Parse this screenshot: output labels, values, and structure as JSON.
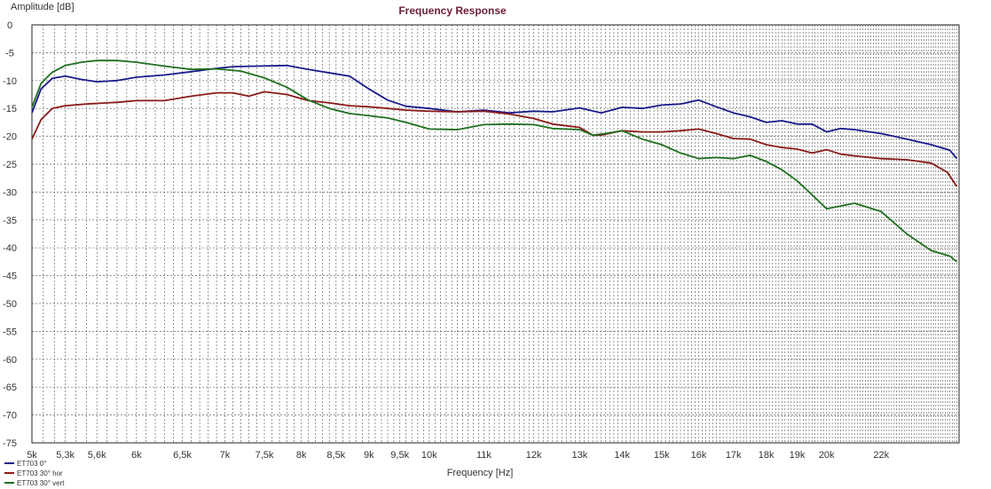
{
  "chart_data": {
    "type": "line",
    "title": "Frequency Response",
    "xlabel": "Frequency [Hz]",
    "ylabel": "Amplitude [dB]",
    "x_scale": "log",
    "xlim": [
      5000,
      25200
    ],
    "ylim": [
      -75,
      0
    ],
    "grid": true,
    "legend_position": "bottom-left",
    "x_tick_labels": [
      {
        "value": 5000,
        "label": "5k"
      },
      {
        "value": 5300,
        "label": "5,3k"
      },
      {
        "value": 5600,
        "label": "5,6k"
      },
      {
        "value": 6000,
        "label": "6k"
      },
      {
        "value": 6500,
        "label": "6,5k"
      },
      {
        "value": 7000,
        "label": "7k"
      },
      {
        "value": 7500,
        "label": "7,5k"
      },
      {
        "value": 8000,
        "label": "8k"
      },
      {
        "value": 8500,
        "label": "8,5k"
      },
      {
        "value": 9000,
        "label": "9k"
      },
      {
        "value": 9500,
        "label": "9,5k"
      },
      {
        "value": 10000,
        "label": "10k"
      },
      {
        "value": 11000,
        "label": "11k"
      },
      {
        "value": 12000,
        "label": "12k"
      },
      {
        "value": 13000,
        "label": "13k"
      },
      {
        "value": 14000,
        "label": "14k"
      },
      {
        "value": 15000,
        "label": "15k"
      },
      {
        "value": 16000,
        "label": "16k"
      },
      {
        "value": 17000,
        "label": "17k"
      },
      {
        "value": 18000,
        "label": "18k"
      },
      {
        "value": 19000,
        "label": "19k"
      },
      {
        "value": 20000,
        "label": "20k"
      },
      {
        "value": 22000,
        "label": "22k"
      }
    ],
    "y_ticks": [
      0,
      -5,
      -10,
      -15,
      -20,
      -25,
      -30,
      -35,
      -40,
      -45,
      -50,
      -55,
      -60,
      -65,
      -70,
      -75
    ],
    "series": [
      {
        "name": "ET703 0°",
        "color": "#1a1a8c",
        "points": [
          [
            5000,
            -15.8
          ],
          [
            5080,
            -11.5
          ],
          [
            5180,
            -9.6
          ],
          [
            5300,
            -9.2
          ],
          [
            5450,
            -9.8
          ],
          [
            5600,
            -10.2
          ],
          [
            5800,
            -10.0
          ],
          [
            6000,
            -9.4
          ],
          [
            6300,
            -9.0
          ],
          [
            6600,
            -8.4
          ],
          [
            6900,
            -7.8
          ],
          [
            7100,
            -7.5
          ],
          [
            7400,
            -7.4
          ],
          [
            7800,
            -7.3
          ],
          [
            8100,
            -8.0
          ],
          [
            8500,
            -8.8
          ],
          [
            8700,
            -9.2
          ],
          [
            9000,
            -11.5
          ],
          [
            9300,
            -13.5
          ],
          [
            9600,
            -14.6
          ],
          [
            10000,
            -15.0
          ],
          [
            10500,
            -15.6
          ],
          [
            11000,
            -15.3
          ],
          [
            11500,
            -15.8
          ],
          [
            12000,
            -15.5
          ],
          [
            12400,
            -15.6
          ],
          [
            13000,
            -14.9
          ],
          [
            13500,
            -15.8
          ],
          [
            14000,
            -14.8
          ],
          [
            14500,
            -15.0
          ],
          [
            15000,
            -14.4
          ],
          [
            15500,
            -14.2
          ],
          [
            16000,
            -13.5
          ],
          [
            16500,
            -14.7
          ],
          [
            17000,
            -15.8
          ],
          [
            17500,
            -16.5
          ],
          [
            18000,
            -17.5
          ],
          [
            18500,
            -17.2
          ],
          [
            19000,
            -17.8
          ],
          [
            19500,
            -17.8
          ],
          [
            20000,
            -19.2
          ],
          [
            20500,
            -18.6
          ],
          [
            21000,
            -18.8
          ],
          [
            22000,
            -19.5
          ],
          [
            23000,
            -20.5
          ],
          [
            24000,
            -21.5
          ],
          [
            24800,
            -22.5
          ],
          [
            25100,
            -24.0
          ]
        ]
      },
      {
        "name": "ET703 30° hor",
        "color": "#8b1a1a",
        "points": [
          [
            5000,
            -20.5
          ],
          [
            5080,
            -17.0
          ],
          [
            5180,
            -15.0
          ],
          [
            5300,
            -14.5
          ],
          [
            5500,
            -14.2
          ],
          [
            5800,
            -13.9
          ],
          [
            6000,
            -13.6
          ],
          [
            6300,
            -13.6
          ],
          [
            6600,
            -12.8
          ],
          [
            6900,
            -12.2
          ],
          [
            7100,
            -12.2
          ],
          [
            7300,
            -12.8
          ],
          [
            7500,
            -12.0
          ],
          [
            7800,
            -12.5
          ],
          [
            8100,
            -13.6
          ],
          [
            8400,
            -14.0
          ],
          [
            8700,
            -14.5
          ],
          [
            9000,
            -14.7
          ],
          [
            9300,
            -15.0
          ],
          [
            9600,
            -15.3
          ],
          [
            10000,
            -15.5
          ],
          [
            10500,
            -15.6
          ],
          [
            11000,
            -15.5
          ],
          [
            11500,
            -16.0
          ],
          [
            12000,
            -16.8
          ],
          [
            12400,
            -17.8
          ],
          [
            13000,
            -18.4
          ],
          [
            13300,
            -19.8
          ],
          [
            13500,
            -19.8
          ],
          [
            14000,
            -19.0
          ],
          [
            14500,
            -19.2
          ],
          [
            15000,
            -19.2
          ],
          [
            15500,
            -19.0
          ],
          [
            16000,
            -18.7
          ],
          [
            16500,
            -19.5
          ],
          [
            17000,
            -20.4
          ],
          [
            17500,
            -20.5
          ],
          [
            18000,
            -21.5
          ],
          [
            18500,
            -22.0
          ],
          [
            19000,
            -22.3
          ],
          [
            19500,
            -23.0
          ],
          [
            20000,
            -22.4
          ],
          [
            20500,
            -23.2
          ],
          [
            21000,
            -23.5
          ],
          [
            22000,
            -24.0
          ],
          [
            23000,
            -24.2
          ],
          [
            24000,
            -24.8
          ],
          [
            24700,
            -26.5
          ],
          [
            25100,
            -29.0
          ]
        ]
      },
      {
        "name": "ET703 30° vert",
        "color": "#1f6f1f",
        "points": [
          [
            5000,
            -14.8
          ],
          [
            5080,
            -10.5
          ],
          [
            5180,
            -8.5
          ],
          [
            5300,
            -7.3
          ],
          [
            5450,
            -6.7
          ],
          [
            5600,
            -6.4
          ],
          [
            5800,
            -6.4
          ],
          [
            6000,
            -6.7
          ],
          [
            6300,
            -7.4
          ],
          [
            6600,
            -8.0
          ],
          [
            6900,
            -7.9
          ],
          [
            7200,
            -8.3
          ],
          [
            7500,
            -9.5
          ],
          [
            7800,
            -11.2
          ],
          [
            8100,
            -13.5
          ],
          [
            8400,
            -15.0
          ],
          [
            8700,
            -15.9
          ],
          [
            9000,
            -16.3
          ],
          [
            9300,
            -16.7
          ],
          [
            9600,
            -17.5
          ],
          [
            10000,
            -18.7
          ],
          [
            10500,
            -18.8
          ],
          [
            11000,
            -17.9
          ],
          [
            11500,
            -17.8
          ],
          [
            12000,
            -17.9
          ],
          [
            12400,
            -18.6
          ],
          [
            13000,
            -18.8
          ],
          [
            13300,
            -19.8
          ],
          [
            13600,
            -19.5
          ],
          [
            14000,
            -19.0
          ],
          [
            14500,
            -20.5
          ],
          [
            15000,
            -21.5
          ],
          [
            15500,
            -23.0
          ],
          [
            16000,
            -24.0
          ],
          [
            16500,
            -23.8
          ],
          [
            17000,
            -24.0
          ],
          [
            17500,
            -23.4
          ],
          [
            18000,
            -24.5
          ],
          [
            18500,
            -26.0
          ],
          [
            19000,
            -28.0
          ],
          [
            19500,
            -30.5
          ],
          [
            20000,
            -33.0
          ],
          [
            20500,
            -32.5
          ],
          [
            21000,
            -32.0
          ],
          [
            22000,
            -33.5
          ],
          [
            23000,
            -37.5
          ],
          [
            24000,
            -40.5
          ],
          [
            24800,
            -41.5
          ],
          [
            25100,
            -42.5
          ]
        ]
      }
    ]
  }
}
